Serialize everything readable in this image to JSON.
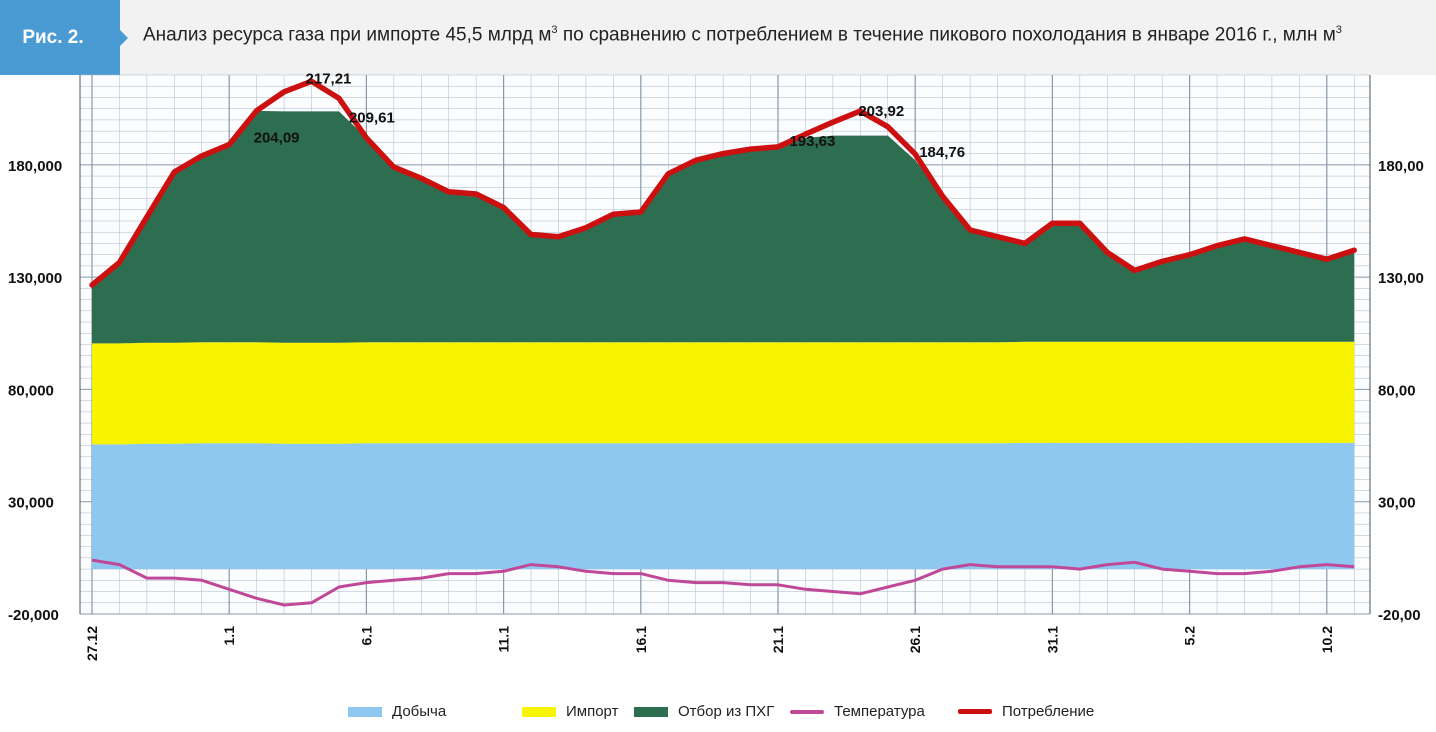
{
  "header": {
    "badge": "Рис. 2.",
    "title_main": "Анализ ресурса газа при импорте 45,5 млрд  м",
    "title_sup1": "3",
    "title_rest": " по сравнению с потреблением в течение пикового похолодания в январе 2016 г., млн м",
    "title_sup2": "3"
  },
  "colors": {
    "dobycha": "#8ec8f0",
    "import": "#f8f400",
    "phg": "#2e6e50",
    "temperature": "#c04898",
    "consumption": "#cc1010",
    "grid": "#a8b8c8"
  },
  "chart_data": {
    "type": "area",
    "ylim": [
      -20,
      220
    ],
    "y_ticks_left": [
      "180,000",
      "130,000",
      "80,000",
      "30,000",
      "-20,000"
    ],
    "y_ticks_right": [
      "180,00",
      "130,00",
      "80,00",
      "30,00",
      "-20,00"
    ],
    "y_tick_values": [
      180,
      130,
      80,
      30,
      -20
    ],
    "x_tick_labels": [
      "27.12",
      "1.1",
      "6.1",
      "11.1",
      "16.1",
      "21.1",
      "26.1",
      "31.1",
      "5.2",
      "10.2"
    ],
    "x_tick_indices": [
      0,
      5,
      10,
      15,
      20,
      25,
      30,
      35,
      40,
      45
    ],
    "n_points": 47,
    "legend": [
      "Добыча",
      "Импорт",
      "Отбор из ПХГ",
      "Температура",
      "Потребление"
    ],
    "series": [
      {
        "name": "Добыча",
        "values": [
          55.5,
          55.5,
          55.8,
          55.8,
          56,
          56,
          56,
          55.8,
          55.8,
          55.8,
          56,
          56,
          56,
          56,
          56,
          56,
          56,
          56,
          56,
          56,
          56,
          56,
          56,
          56,
          56,
          56,
          56,
          56,
          56,
          56,
          56,
          56,
          56,
          56,
          56.2,
          56.2,
          56.2,
          56.2,
          56.2,
          56.2,
          56.2,
          56.2,
          56.2,
          56.2,
          56.2,
          56.2,
          56.2
        ]
      },
      {
        "name": "Импорт",
        "values": [
          45,
          45,
          45,
          45,
          45,
          45,
          45,
          45,
          45,
          45,
          45,
          45,
          45,
          45,
          45,
          45,
          45,
          45,
          45,
          45,
          45,
          45,
          45,
          45,
          45,
          45,
          45,
          45,
          45,
          45,
          45,
          45,
          45,
          45,
          45,
          45,
          45,
          45,
          45,
          45,
          45,
          45,
          45,
          45,
          45,
          45,
          45
        ]
      },
      {
        "name": "Отбор из ПХГ",
        "values": [
          26,
          36,
          56,
          76,
          83,
          88,
          103,
          103,
          103,
          103,
          91,
          78,
          73,
          67,
          66,
          60,
          48,
          47,
          51,
          57,
          58,
          75,
          81,
          84,
          86,
          87,
          91,
          92,
          92,
          92,
          81,
          65,
          50,
          47,
          44,
          53,
          53,
          39,
          32,
          36,
          39,
          43,
          46,
          43,
          40,
          37,
          41
        ]
      },
      {
        "name": "Температура",
        "values": [
          4,
          2,
          -4,
          -4,
          -5,
          -9,
          -13,
          -16,
          -15,
          -8,
          -6,
          -5,
          -4,
          -2,
          -2,
          -1,
          2,
          1,
          -1,
          -2,
          -2,
          -5,
          -6,
          -6,
          -7,
          -7,
          -9,
          -10,
          -11,
          -8,
          -5,
          0,
          2,
          1,
          1,
          1,
          0,
          2,
          3,
          0,
          -1,
          -2,
          -2,
          -1,
          1,
          2,
          1
        ]
      },
      {
        "name": "Потребление",
        "values": [
          126.5,
          136.5,
          156.8,
          176.8,
          184,
          189,
          204.09,
          212.5,
          217.21,
          209.61,
          192,
          179,
          174,
          168,
          167,
          161,
          149,
          148,
          152,
          158,
          159,
          176,
          182,
          185,
          187,
          188,
          193.63,
          199,
          203.92,
          197,
          184.76,
          166,
          151,
          148,
          145,
          154,
          154,
          141,
          133,
          137,
          140,
          144,
          147,
          144,
          141,
          138,
          142
        ]
      }
    ],
    "data_labels": [
      "204,09",
      "217,21",
      "209,61",
      "193,63",
      "203,92",
      "184,76"
    ]
  }
}
